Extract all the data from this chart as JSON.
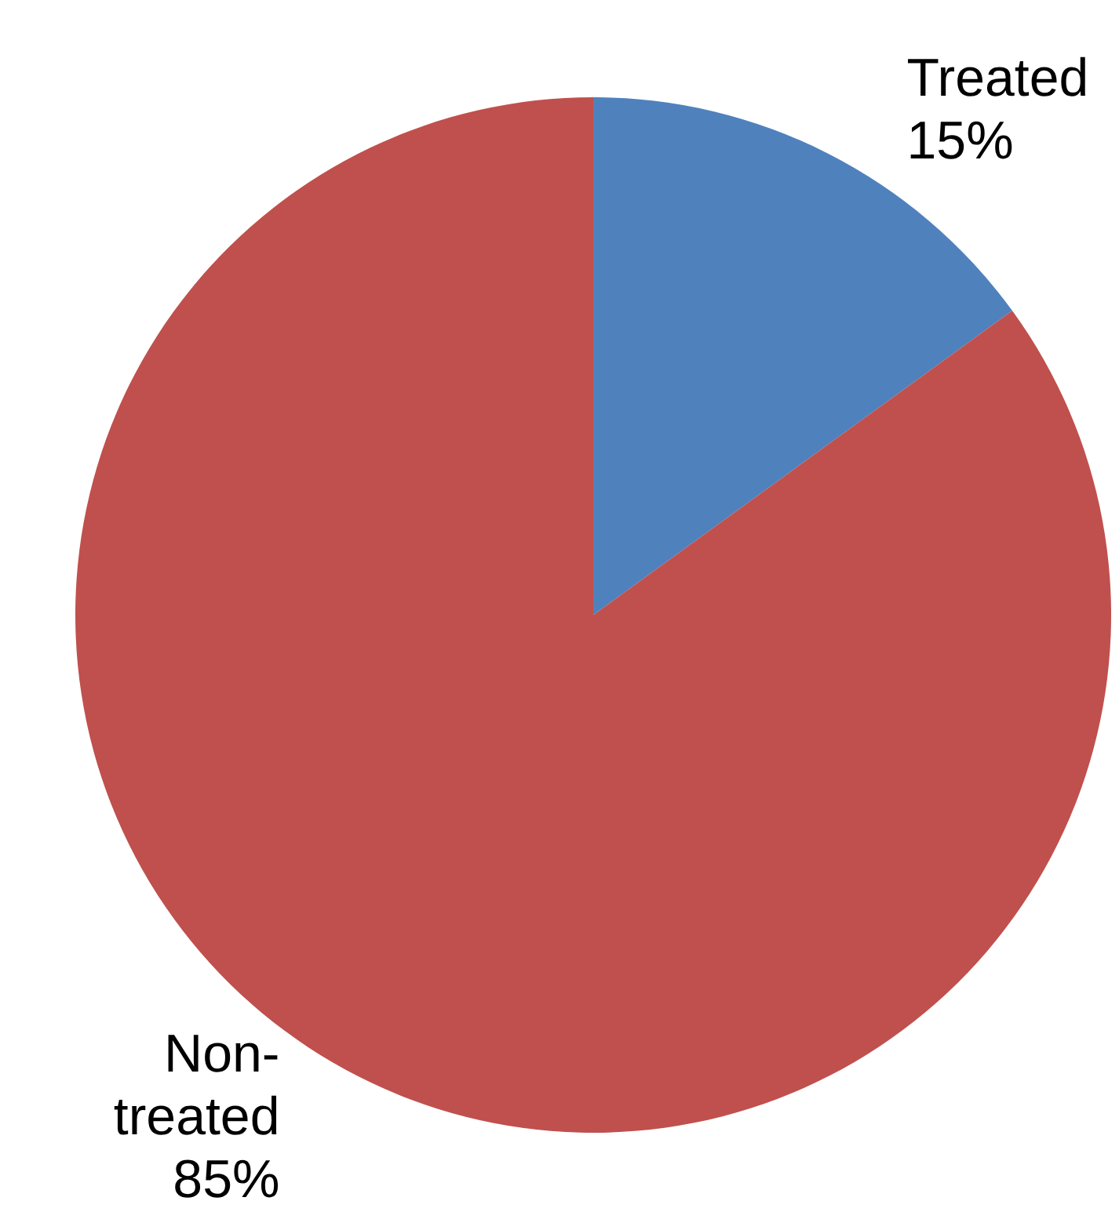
{
  "chart_data": {
    "type": "pie",
    "categories": [
      "Treated",
      "Non-treated"
    ],
    "values": [
      15,
      85
    ],
    "colors": [
      "#4f81bd",
      "#c0504d"
    ],
    "value_labels": [
      "15%",
      "85%"
    ]
  }
}
